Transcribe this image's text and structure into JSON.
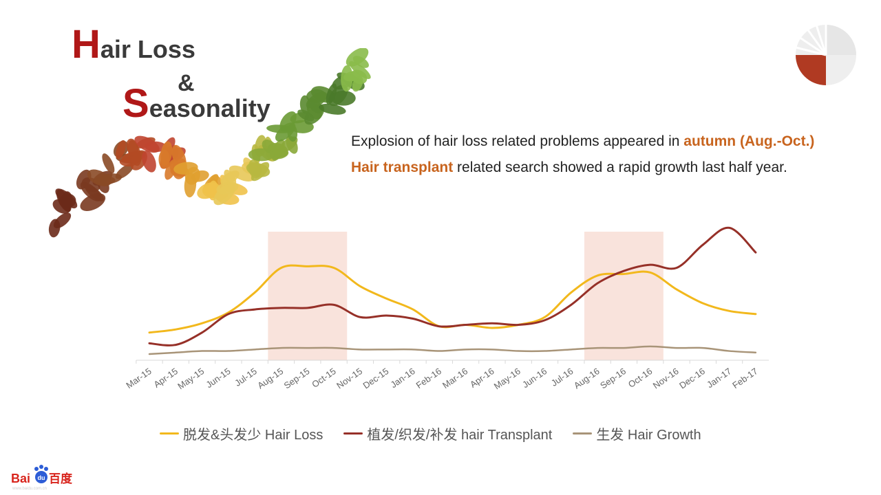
{
  "title": {
    "line1_cap": "H",
    "line1_rest": "air Loss",
    "amp": "&",
    "line2_cap": "S",
    "line2_rest": "easonality"
  },
  "headline": {
    "line1_pre": "Explosion of hair loss related problems appeared in ",
    "line1_hl": "autumn (Aug.-Oct.)",
    "line2_hl": "Hair transplant",
    "line2_post": " related search showed a rapid growth last half year."
  },
  "logo": {
    "text_latin": "Bai",
    "text_du": "du",
    "text_cn": "百度",
    "url_text": "www.baidu.com.cn"
  },
  "colors": {
    "accent_red": "#b01818",
    "highlight_orange": "#c8641e",
    "hair_loss": "#f2b81c",
    "hair_transplant": "#963028",
    "hair_growth": "#a89478",
    "band": "#f9e3dc"
  },
  "chart_data": {
    "type": "line",
    "title": "",
    "xlabel": "",
    "ylabel": "",
    "ylim": [
      0,
      100
    ],
    "grid": false,
    "legend_position": "bottom",
    "categories": [
      "Mar-15",
      "Apr-15",
      "May-15",
      "Jun-15",
      "Jul-15",
      "Aug-15",
      "Sep-15",
      "Oct-15",
      "Nov-15",
      "Dec-15",
      "Jan-16",
      "Feb-16",
      "Mar-16",
      "Apr-16",
      "May-16",
      "Jun-16",
      "Jul-16",
      "Aug-16",
      "Sep-16",
      "Oct-16",
      "Nov-16",
      "Dec-16",
      "Jan-17",
      "Feb-17"
    ],
    "highlight_ranges": [
      [
        "Aug-15",
        "Oct-15"
      ],
      [
        "Aug-16",
        "Oct-16"
      ]
    ],
    "series": [
      {
        "name": "脱发&头发少 Hair Loss",
        "color": "#f2b81c",
        "values": [
          18,
          20,
          24,
          31,
          44,
          60,
          61,
          60,
          48,
          40,
          33,
          22,
          23,
          21,
          23,
          28,
          44,
          55,
          56,
          57,
          46,
          37,
          32,
          30
        ]
      },
      {
        "name": "植发/织发/补发 hair Transplant",
        "color": "#963028",
        "values": [
          11,
          10,
          18,
          30,
          33,
          34,
          34,
          36,
          28,
          29,
          27,
          22,
          23,
          24,
          23,
          26,
          36,
          50,
          58,
          62,
          60,
          75,
          86,
          70
        ]
      },
      {
        "name": "生发 Hair Growth",
        "color": "#a89478",
        "values": [
          4,
          5,
          6,
          6,
          7,
          8,
          8,
          8,
          7,
          7,
          7,
          6,
          7,
          7,
          6,
          6,
          7,
          8,
          8,
          9,
          8,
          8,
          6,
          5
        ]
      }
    ]
  }
}
